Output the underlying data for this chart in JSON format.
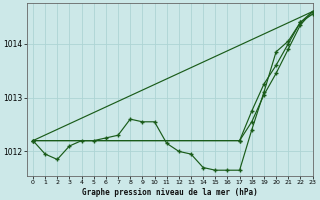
{
  "title": "Graphe pression niveau de la mer (hPa)",
  "background_color": "#cce8e8",
  "grid_color": "#aed4d4",
  "line_color": "#1a5c1a",
  "xlim": [
    -0.5,
    23
  ],
  "ylim": [
    1011.55,
    1014.75
  ],
  "yticks": [
    1012,
    1013,
    1014
  ],
  "xticks": [
    0,
    1,
    2,
    3,
    4,
    5,
    6,
    7,
    8,
    9,
    10,
    11,
    12,
    13,
    14,
    15,
    16,
    17,
    18,
    19,
    20,
    21,
    22,
    23
  ],
  "series1": [
    1012.2,
    1011.95,
    1011.85,
    1012.1,
    1012.2,
    1012.2,
    1012.25,
    1012.3,
    1012.6,
    1012.55,
    1012.55,
    1012.15,
    1012.0,
    1011.95,
    1011.7,
    1011.65,
    1011.65,
    1011.65,
    1012.4,
    1013.1,
    1013.85,
    1014.05,
    1014.4,
    1014.55
  ],
  "series2_x": [
    0,
    17,
    18,
    19,
    20,
    21,
    22,
    23
  ],
  "series2_y": [
    1012.2,
    1012.2,
    1012.55,
    1013.05,
    1013.45,
    1013.9,
    1014.35,
    1014.6
  ],
  "series3_x": [
    0,
    17,
    18,
    19,
    20,
    21,
    22,
    23
  ],
  "series3_y": [
    1012.2,
    1012.2,
    1012.75,
    1013.25,
    1013.6,
    1014.0,
    1014.4,
    1014.6
  ],
  "trend_x": [
    0,
    23
  ],
  "trend_y": [
    1012.2,
    1014.6
  ]
}
